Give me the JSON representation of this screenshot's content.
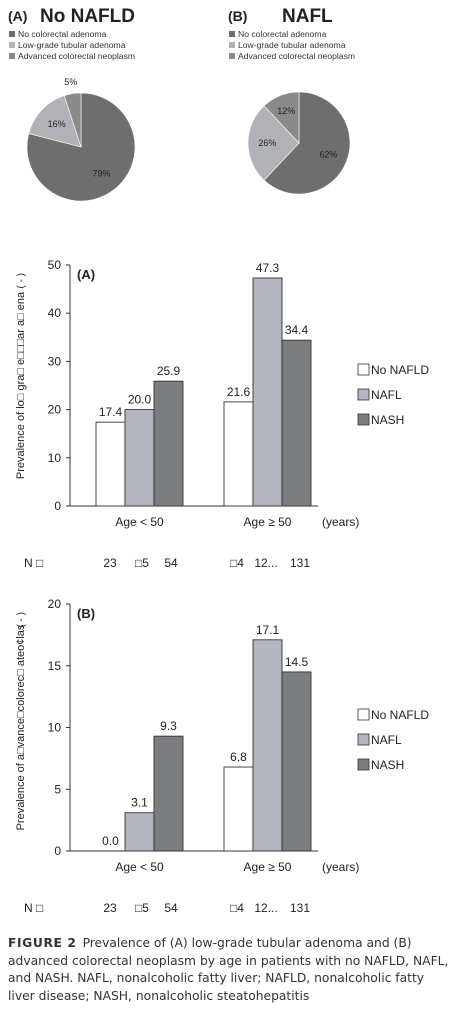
{
  "chart_data": [
    {
      "type": "pie",
      "panel": "(A)",
      "title": "No NAFLD",
      "legend": [
        "No colorectal adenoma",
        "Low-grade tubular adenoma",
        "Advanced colorectal neoplasm"
      ],
      "labels": [
        "79%",
        "16%",
        "5%"
      ],
      "values": [
        79,
        16,
        5
      ],
      "colors": [
        "#6e6e6e",
        "#b0b2b8",
        "#8a8a8a"
      ]
    },
    {
      "type": "pie",
      "panel": "(B)",
      "title": "NAFL",
      "legend": [
        "No colorectal adenoma",
        "Low-grade tubular adenoma",
        "Advanced colorectal neoplasm"
      ],
      "labels": [
        "62%",
        "26%",
        "12%"
      ],
      "values": [
        62,
        26,
        12
      ],
      "colors": [
        "#6e6e6e",
        "#b0b2b8",
        "#8a8a8a"
      ]
    },
    {
      "type": "bar",
      "panel": "(A)",
      "ylabel": "Prevalence of lo□ gra□ e□□□ar a□ ena",
      "yunit": "(  -  )",
      "ylim": [
        0,
        50
      ],
      "yticks": [
        "0",
        "10",
        "20",
        "30",
        "40",
        "50"
      ],
      "categories": [
        "Age < 50",
        "Age ≥ 50"
      ],
      "xunit": "(years)",
      "series": [
        {
          "name": "No NAFLD",
          "values": [
            17.4,
            21.6
          ],
          "labels": [
            "17.4",
            "21.6"
          ],
          "color": "#ffffff"
        },
        {
          "name": "NAFL",
          "values": [
            20.0,
            47.3
          ],
          "labels": [
            "20.0",
            "47.3"
          ],
          "color": "#b3b6c0"
        },
        {
          "name": "NASH",
          "values": [
            25.9,
            34.4
          ],
          "labels": [
            "25.9",
            "34.4"
          ],
          "color": "#7b7d80"
        }
      ],
      "n_row": {
        "label": "N □",
        "groups": [
          [
            "23",
            "□5",
            "54"
          ],
          [
            "□4",
            "12...",
            "131"
          ]
        ]
      }
    },
    {
      "type": "bar",
      "panel": "(B)",
      "ylabel": "Prevalence of a□vance□colorec□ ateo¢las",
      "yunit": "(  -  )",
      "ylim": [
        0,
        20
      ],
      "yticks": [
        "0",
        "5",
        "10",
        "15",
        "20"
      ],
      "categories": [
        "Age < 50",
        "Age ≥ 50"
      ],
      "xunit": "(years)",
      "series": [
        {
          "name": "No NAFLD",
          "values": [
            0.0,
            6.8
          ],
          "labels": [
            "0.0",
            "6.8"
          ],
          "color": "#ffffff"
        },
        {
          "name": "NAFL",
          "values": [
            3.1,
            17.1
          ],
          "labels": [
            "3.1",
            "17.1"
          ],
          "color": "#b3b6c0"
        },
        {
          "name": "NASH",
          "values": [
            9.3,
            14.5
          ],
          "labels": [
            "9.3",
            "14.5"
          ],
          "color": "#7b7d80"
        }
      ],
      "n_row": {
        "label": "N □",
        "groups": [
          [
            "23",
            "□5",
            "54"
          ],
          [
            "□4",
            "12...",
            "131"
          ]
        ]
      }
    }
  ],
  "caption": {
    "label": "FIGURE 2",
    "text": "Prevalence of (A) low-grade tubular adenoma and (B) advanced colorectal neoplasm by age in patients with no NAFLD, NAFL, and NASH. NAFL, nonalcoholic fatty liver; NAFLD, nonalcoholic fatty liver disease; NASH, nonalcoholic steatohepatitis"
  }
}
